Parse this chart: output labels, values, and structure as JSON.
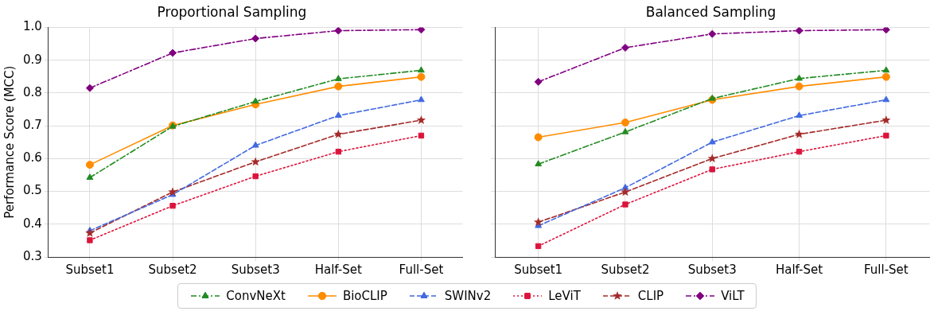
{
  "chart_data": [
    {
      "type": "line",
      "title": "Proportional Sampling",
      "ylabel": "Performance Score (MCC)",
      "categories": [
        "Subset1",
        "Subset2",
        "Subset3",
        "Half-Set",
        "Full-Set"
      ],
      "ylim": [
        0.3,
        1.0
      ],
      "yticks": [
        {
          "value": 0.3,
          "label": "0.3"
        },
        {
          "value": 0.4,
          "label": "0.4"
        },
        {
          "value": 0.5,
          "label": "0.5"
        },
        {
          "value": 0.6,
          "label": "0.6"
        },
        {
          "value": 0.7,
          "label": "0.7"
        },
        {
          "value": 0.8,
          "label": "0.8"
        },
        {
          "value": 0.9,
          "label": "0.9"
        },
        {
          "value": 1.0,
          "label": "1.0"
        }
      ],
      "grid": true,
      "legend": "bottom",
      "series": [
        {
          "name": "ConvNeXt",
          "color": "#228b22",
          "marker": "triangle",
          "line_style": "dashdot",
          "values": [
            0.542,
            0.698,
            0.774,
            0.843,
            0.869
          ]
        },
        {
          "name": "BioCLIP",
          "color": "#ff8c00",
          "marker": "circle",
          "line_style": "solid",
          "values": [
            0.581,
            0.701,
            0.765,
            0.82,
            0.849
          ]
        },
        {
          "name": "SWINv2",
          "color": "#4169e1",
          "marker": "triangle",
          "line_style": "dashed",
          "values": [
            0.38,
            0.49,
            0.64,
            0.731,
            0.779
          ]
        },
        {
          "name": "LeViT",
          "color": "#dc143c",
          "marker": "square",
          "line_style": "dotted",
          "values": [
            0.351,
            0.456,
            0.546,
            0.621,
            0.67
          ]
        },
        {
          "name": "CLIP",
          "color": "#a52a2a",
          "marker": "star",
          "line_style": "dashed",
          "values": [
            0.373,
            0.498,
            0.59,
            0.674,
            0.717
          ]
        },
        {
          "name": "ViLT",
          "color": "#800080",
          "marker": "diamond",
          "line_style": "dashdot",
          "values": [
            0.815,
            0.922,
            0.966,
            0.99,
            0.993
          ]
        }
      ]
    },
    {
      "type": "line",
      "title": "Balanced Sampling",
      "categories": [
        "Subset1",
        "Subset2",
        "Subset3",
        "Half-Set",
        "Full-Set"
      ],
      "ylim": [
        0.3,
        1.0
      ],
      "yticks": [
        {
          "value": 0.3,
          "label": null
        },
        {
          "value": 0.4,
          "label": null
        },
        {
          "value": 0.5,
          "label": null
        },
        {
          "value": 0.6,
          "label": null
        },
        {
          "value": 0.7,
          "label": null
        },
        {
          "value": 0.8,
          "label": null
        },
        {
          "value": 0.9,
          "label": null
        },
        {
          "value": 1.0,
          "label": null
        }
      ],
      "grid": true,
      "tick_labels": "x",
      "series": [
        {
          "color": "#228b22",
          "marker": "triangle",
          "line_style": "dashdot",
          "values": [
            0.583,
            0.681,
            0.783,
            0.844,
            0.869
          ]
        },
        {
          "color": "#ff8c00",
          "marker": "circle",
          "line_style": "solid",
          "values": [
            0.665,
            0.71,
            0.779,
            0.82,
            0.849
          ]
        },
        {
          "color": "#4169e1",
          "marker": "triangle",
          "line_style": "dashed",
          "values": [
            0.395,
            0.511,
            0.65,
            0.731,
            0.779
          ]
        },
        {
          "color": "#dc143c",
          "marker": "square",
          "line_style": "dotted",
          "values": [
            0.333,
            0.46,
            0.567,
            0.621,
            0.67
          ]
        },
        {
          "color": "#a52a2a",
          "marker": "star",
          "line_style": "dashed",
          "values": [
            0.406,
            0.498,
            0.6,
            0.674,
            0.717
          ]
        },
        {
          "color": "#800080",
          "marker": "diamond",
          "line_style": "dashdot",
          "values": [
            0.834,
            0.938,
            0.98,
            0.99,
            0.993
          ]
        }
      ]
    }
  ]
}
